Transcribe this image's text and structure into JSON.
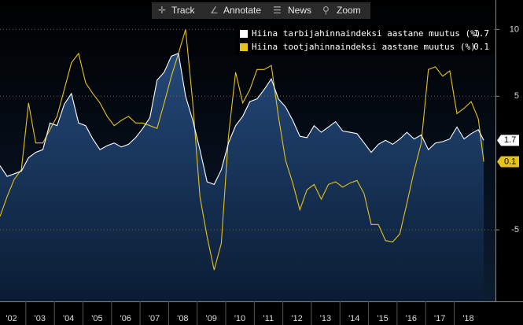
{
  "toolbar": [
    "Track",
    "Annotate",
    "News",
    "Zoom"
  ],
  "chart_data": {
    "type": "line",
    "x": [
      2002.1,
      2002.35,
      2002.6,
      2002.85,
      2003.1,
      2003.35,
      2003.6,
      2003.85,
      2004.1,
      2004.35,
      2004.6,
      2004.85,
      2005.1,
      2005.35,
      2005.6,
      2005.85,
      2006.1,
      2006.35,
      2006.6,
      2006.85,
      2007.1,
      2007.35,
      2007.6,
      2007.85,
      2008.1,
      2008.35,
      2008.6,
      2008.85,
      2009.1,
      2009.35,
      2009.6,
      2009.85,
      2010.1,
      2010.35,
      2010.6,
      2010.85,
      2011.1,
      2011.35,
      2011.6,
      2011.85,
      2012.1,
      2012.35,
      2012.6,
      2012.85,
      2013.1,
      2013.35,
      2013.6,
      2013.85,
      2014.1,
      2014.35,
      2014.6,
      2014.85,
      2015.1,
      2015.35,
      2015.6,
      2015.85,
      2016.1,
      2016.35,
      2016.6,
      2016.85,
      2017.1,
      2017.35,
      2017.6,
      2017.85,
      2018.1,
      2018.35,
      2018.6,
      2018.85,
      2019.04
    ],
    "series": [
      {
        "name": "Hiina tarbijahinnaindeksi aastane muutus (%)",
        "color": "#ffffff",
        "fill": true,
        "values": [
          -0.2,
          -1.0,
          -0.8,
          -0.6,
          0.4,
          0.8,
          1.0,
          3.0,
          2.8,
          4.4,
          5.2,
          3.0,
          2.8,
          1.8,
          1.0,
          1.3,
          1.5,
          1.2,
          1.4,
          1.9,
          2.6,
          3.4,
          6.2,
          6.8,
          8.0,
          8.2,
          5.0,
          3.2,
          1.0,
          -1.4,
          -1.6,
          -0.5,
          1.5,
          2.8,
          3.5,
          4.6,
          4.8,
          5.5,
          6.3,
          4.8,
          4.2,
          3.2,
          2.0,
          1.9,
          2.8,
          2.3,
          2.7,
          3.1,
          2.4,
          2.3,
          2.2,
          1.5,
          0.8,
          1.4,
          1.7,
          1.4,
          1.8,
          2.3,
          1.8,
          2.1,
          1.0,
          1.5,
          1.6,
          1.8,
          2.7,
          1.8,
          2.2,
          2.5,
          1.7
        ]
      },
      {
        "name": "Hiina tootjahinnaindeksi aastane muutus (%)",
        "color": "#e6c21c",
        "fill": false,
        "values": [
          -4.0,
          -2.5,
          -1.2,
          -0.5,
          4.5,
          1.5,
          1.5,
          2.5,
          3.5,
          5.5,
          7.5,
          8.2,
          6.0,
          5.2,
          4.5,
          3.5,
          2.8,
          3.2,
          3.5,
          3.0,
          3.0,
          2.8,
          2.6,
          4.5,
          6.5,
          8.2,
          10.0,
          4.5,
          -2.5,
          -5.5,
          -8.0,
          -6.0,
          2.0,
          6.8,
          4.5,
          5.5,
          7.0,
          7.0,
          7.3,
          3.5,
          0.2,
          -1.5,
          -3.5,
          -2.0,
          -1.6,
          -2.7,
          -1.6,
          -1.4,
          -1.8,
          -1.5,
          -1.3,
          -2.3,
          -4.6,
          -4.6,
          -5.8,
          -5.9,
          -5.3,
          -3.0,
          -0.6,
          1.5,
          7.0,
          7.2,
          6.5,
          6.9,
          3.7,
          4.1,
          4.6,
          3.3,
          0.1
        ]
      }
    ],
    "xlim": [
      2002.1,
      2019.45
    ],
    "xticks": [
      {
        "value": 2002.5,
        "label": "'02"
      },
      {
        "value": 2003.5,
        "label": "'03"
      },
      {
        "value": 2004.5,
        "label": "'04"
      },
      {
        "value": 2005.5,
        "label": "'05"
      },
      {
        "value": 2006.5,
        "label": "'06"
      },
      {
        "value": 2007.5,
        "label": "'07"
      },
      {
        "value": 2008.5,
        "label": "'08"
      },
      {
        "value": 2009.5,
        "label": "'09"
      },
      {
        "value": 2010.5,
        "label": "'10"
      },
      {
        "value": 2011.5,
        "label": "'11"
      },
      {
        "value": 2012.5,
        "label": "'12"
      },
      {
        "value": 2013.5,
        "label": "'13"
      },
      {
        "value": 2014.5,
        "label": "'14"
      },
      {
        "value": 2015.5,
        "label": "'15"
      },
      {
        "value": 2016.5,
        "label": "'16"
      },
      {
        "value": 2017.5,
        "label": "'17"
      },
      {
        "value": 2018.5,
        "label": "'18"
      }
    ],
    "ylim": [
      -10.35,
      12.2
    ],
    "yticks": [
      -5,
      5,
      10
    ],
    "grid": true
  }
}
